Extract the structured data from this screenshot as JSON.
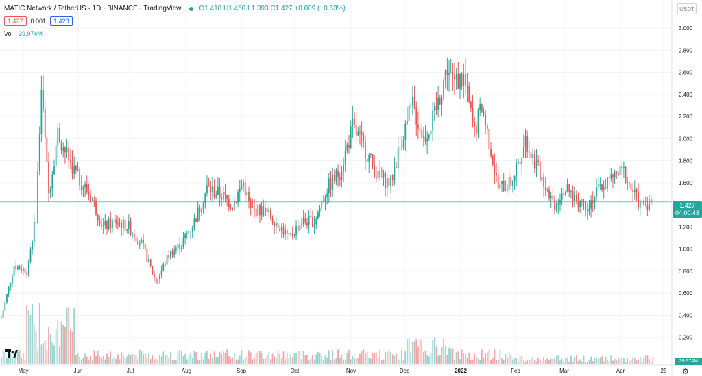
{
  "header": {
    "title": "MATIC Network / TetherUS · 1D · BINANCE · TradingView",
    "ohlc": "O1.418 H1.450 L1.393 C1.427 +0.009 (+0.63%)"
  },
  "bid": "1.427",
  "spread": "0.001",
  "ask": "1.428",
  "volume_legend": {
    "label": "Vol",
    "value": "39.974M"
  },
  "currency_button": "USDT",
  "current_price": {
    "price": "1.427",
    "countdown": "04:00:48"
  },
  "volume_current": "39.974M",
  "colors": {
    "up": "#26a69a",
    "down": "#ef5350",
    "up_volume": "#9ad4ce",
    "down_volume": "#f5a6a4",
    "grid": "#f0f3fa"
  },
  "icons": {
    "status": "live-status-dot-icon",
    "logo": "tradingview-logo-icon",
    "settings": "settings-gear-icon"
  },
  "chart_data": {
    "type": "candlestick",
    "price_ticks": [
      "3.000",
      "2.800",
      "2.600",
      "2.400",
      "2.200",
      "2.000",
      "1.800",
      "1.600",
      "1.400",
      "1.200",
      "1.000",
      "0.800",
      "0.600",
      "0.400",
      "0.200"
    ],
    "time_ticks": [
      "May",
      "Jun",
      "Jul",
      "Aug",
      "Sep",
      "Oct",
      "Nov",
      "Dec",
      "2022",
      "Feb",
      "Mar",
      "Apr",
      "25"
    ],
    "price_range": [
      0,
      3.1
    ],
    "approx_close_path": [
      {
        "date": "2021-04-26",
        "close": 0.38
      },
      {
        "date": "2021-05-03",
        "close": 0.85
      },
      {
        "date": "2021-05-10",
        "close": 0.8
      },
      {
        "date": "2021-05-15",
        "close": 1.3
      },
      {
        "date": "2021-05-18",
        "close": 2.45
      },
      {
        "date": "2021-05-22",
        "close": 1.5
      },
      {
        "date": "2021-05-27",
        "close": 2.05
      },
      {
        "date": "2021-06-01",
        "close": 1.85
      },
      {
        "date": "2021-06-07",
        "close": 1.65
      },
      {
        "date": "2021-06-14",
        "close": 1.48
      },
      {
        "date": "2021-06-21",
        "close": 1.2
      },
      {
        "date": "2021-06-28",
        "close": 1.25
      },
      {
        "date": "2021-07-05",
        "close": 1.2
      },
      {
        "date": "2021-07-12",
        "close": 1.05
      },
      {
        "date": "2021-07-20",
        "close": 0.7
      },
      {
        "date": "2021-07-27",
        "close": 0.95
      },
      {
        "date": "2021-08-03",
        "close": 1.05
      },
      {
        "date": "2021-08-10",
        "close": 1.25
      },
      {
        "date": "2021-08-17",
        "close": 1.55
      },
      {
        "date": "2021-08-24",
        "close": 1.5
      },
      {
        "date": "2021-08-31",
        "close": 1.4
      },
      {
        "date": "2021-09-06",
        "close": 1.6
      },
      {
        "date": "2021-09-10",
        "close": 1.35
      },
      {
        "date": "2021-09-17",
        "close": 1.35
      },
      {
        "date": "2021-09-24",
        "close": 1.25
      },
      {
        "date": "2021-10-01",
        "close": 1.1
      },
      {
        "date": "2021-10-08",
        "close": 1.25
      },
      {
        "date": "2021-10-15",
        "close": 1.25
      },
      {
        "date": "2021-10-22",
        "close": 1.55
      },
      {
        "date": "2021-10-29",
        "close": 1.7
      },
      {
        "date": "2021-11-05",
        "close": 2.1
      },
      {
        "date": "2021-11-12",
        "close": 1.9
      },
      {
        "date": "2021-11-19",
        "close": 1.65
      },
      {
        "date": "2021-11-26",
        "close": 1.6
      },
      {
        "date": "2021-12-02",
        "close": 2.0
      },
      {
        "date": "2021-12-08",
        "close": 2.3
      },
      {
        "date": "2021-12-14",
        "close": 2.0
      },
      {
        "date": "2021-12-20",
        "close": 2.2
      },
      {
        "date": "2021-12-27",
        "close": 2.65
      },
      {
        "date": "2021-12-30",
        "close": 2.5
      },
      {
        "date": "2022-01-05",
        "close": 2.55
      },
      {
        "date": "2022-01-11",
        "close": 2.05
      },
      {
        "date": "2022-01-15",
        "close": 2.3
      },
      {
        "date": "2022-01-20",
        "close": 1.9
      },
      {
        "date": "2022-01-24",
        "close": 1.55
      },
      {
        "date": "2022-01-31",
        "close": 1.6
      },
      {
        "date": "2022-02-08",
        "close": 2.0
      },
      {
        "date": "2022-02-14",
        "close": 1.75
      },
      {
        "date": "2022-02-20",
        "close": 1.55
      },
      {
        "date": "2022-02-24",
        "close": 1.4
      },
      {
        "date": "2022-03-01",
        "close": 1.55
      },
      {
        "date": "2022-03-08",
        "close": 1.45
      },
      {
        "date": "2022-03-14",
        "close": 1.4
      },
      {
        "date": "2022-03-21",
        "close": 1.55
      },
      {
        "date": "2022-03-28",
        "close": 1.65
      },
      {
        "date": "2022-04-03",
        "close": 1.7
      },
      {
        "date": "2022-04-07",
        "close": 1.55
      },
      {
        "date": "2022-04-12",
        "close": 1.4
      },
      {
        "date": "2022-04-19",
        "close": 1.427
      }
    ]
  }
}
